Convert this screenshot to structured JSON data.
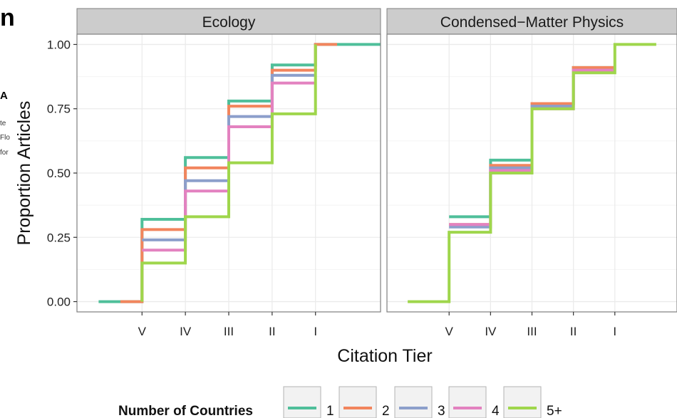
{
  "fragments": {
    "big": "n",
    "a": "A",
    "small": [
      "te",
      "Flo",
      "for"
    ]
  },
  "chart_data": {
    "type": "line",
    "subtype": "step",
    "panels": [
      {
        "title": "Ecology",
        "series": [
          {
            "name": "1",
            "color": "#4fbf9a",
            "x": [
              -1,
              0,
              0,
              1,
              1,
              2,
              2,
              3,
              3,
              4,
              4,
              5.5
            ],
            "y": [
              0,
              0,
              0.32,
              0.32,
              0.56,
              0.56,
              0.78,
              0.78,
              0.92,
              0.92,
              1.0,
              1.0
            ]
          },
          {
            "name": "2",
            "color": "#f2855d",
            "x": [
              -0.5,
              0,
              0,
              1,
              1,
              2,
              2,
              3,
              3,
              4,
              4,
              4.5
            ],
            "y": [
              0,
              0,
              0.28,
              0.28,
              0.52,
              0.52,
              0.76,
              0.76,
              0.9,
              0.9,
              1.0,
              1.0
            ]
          },
          {
            "name": "3",
            "color": "#8c9fcb",
            "x": [
              0,
              0,
              1,
              1,
              2,
              2,
              3,
              3,
              4
            ],
            "y": [
              0.24,
              0.24,
              0.24,
              0.47,
              0.47,
              0.72,
              0.72,
              0.88,
              0.88
            ]
          },
          {
            "name": "4",
            "color": "#e382c0",
            "x": [
              0,
              0,
              1,
              1,
              2,
              2,
              3,
              3,
              4
            ],
            "y": [
              0.2,
              0.2,
              0.2,
              0.43,
              0.43,
              0.68,
              0.68,
              0.85,
              0.85
            ]
          },
          {
            "name": "5+",
            "color": "#9fd64c",
            "x": [
              0,
              0,
              1,
              1,
              2,
              2,
              3,
              3,
              4,
              4
            ],
            "y": [
              0,
              0.15,
              0.15,
              0.33,
              0.33,
              0.54,
              0.54,
              0.73,
              0.73,
              1.0
            ]
          }
        ]
      },
      {
        "title": "Condensed−Matter Physics",
        "series": [
          {
            "name": "1",
            "color": "#4fbf9a",
            "x": [
              0,
              0,
              1,
              1,
              2,
              2,
              3,
              3,
              4
            ],
            "y": [
              0.33,
              0.33,
              0.33,
              0.55,
              0.55,
              0.77,
              0.77,
              0.91,
              0.91
            ]
          },
          {
            "name": "2",
            "color": "#f2855d",
            "x": [
              0,
              0,
              1,
              1,
              2,
              2,
              3,
              3,
              4
            ],
            "y": [
              0.3,
              0.3,
              0.3,
              0.53,
              0.53,
              0.77,
              0.77,
              0.91,
              0.91
            ]
          },
          {
            "name": "3",
            "color": "#8c9fcb",
            "x": [
              0,
              0,
              1,
              1,
              2,
              2,
              3,
              3,
              4
            ],
            "y": [
              0.29,
              0.29,
              0.29,
              0.52,
              0.52,
              0.76,
              0.76,
              0.9,
              0.9
            ]
          },
          {
            "name": "4",
            "color": "#e382c0",
            "x": [
              0,
              0,
              1,
              1,
              2,
              2,
              3,
              3,
              4
            ],
            "y": [
              0.3,
              0.3,
              0.3,
              0.51,
              0.51,
              0.75,
              0.75,
              0.9,
              0.9
            ]
          },
          {
            "name": "5+",
            "color": "#9fd64c",
            "x": [
              -1,
              0,
              0,
              1,
              1,
              2,
              2,
              3,
              3,
              4,
              4,
              5
            ],
            "y": [
              0,
              0,
              0.27,
              0.27,
              0.5,
              0.5,
              0.75,
              0.75,
              0.89,
              0.89,
              1.0,
              1.0
            ]
          }
        ]
      }
    ],
    "xticks": [
      {
        "x": 0,
        "label": "V"
      },
      {
        "x": 1,
        "label": "IV"
      },
      {
        "x": 2,
        "label": "III"
      },
      {
        "x": 3,
        "label": "II"
      },
      {
        "x": 4,
        "label": "I"
      }
    ],
    "xlim": [
      -1.5,
      5.5
    ],
    "yticks": [
      "0.00",
      "0.25",
      "0.50",
      "0.75",
      "1.00"
    ],
    "ylim": [
      -0.04,
      1.04
    ],
    "xlabel": "Citation Tier",
    "ylabel": "Proportion Articles",
    "legend": {
      "title": "Number of Countries",
      "placement": "bottom",
      "entries": [
        {
          "label": "1",
          "color": "#4fbf9a"
        },
        {
          "label": "2",
          "color": "#f2855d"
        },
        {
          "label": "3",
          "color": "#8c9fcb"
        },
        {
          "label": "4",
          "color": "#e382c0"
        },
        {
          "label": "5+",
          "color": "#9fd64c"
        }
      ]
    },
    "panel_background": "#ffffff",
    "grid": true,
    "grid_color": "#ebebeb",
    "strip_background": "#cccccc",
    "panel_border": "#7f7f7f"
  }
}
